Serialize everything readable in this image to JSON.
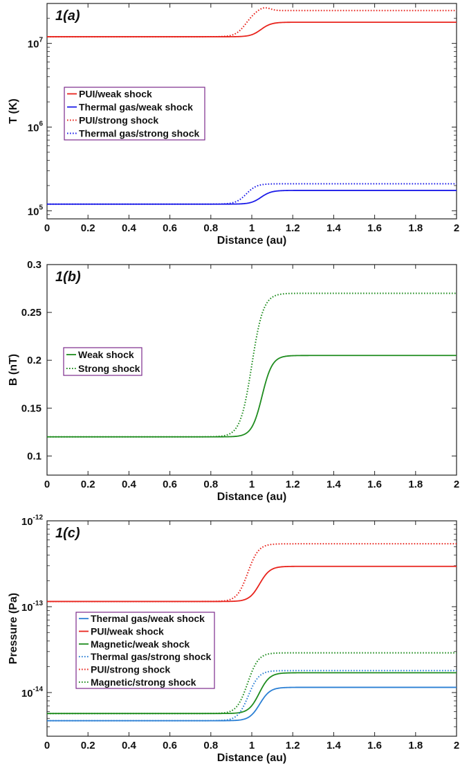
{
  "chart_data": [
    {
      "panel_label": "1(a)",
      "type": "line",
      "xlabel": "Distance (au)",
      "ylabel": "T (K)",
      "xlim": [
        0,
        2
      ],
      "ylim": [
        80000,
        30000000
      ],
      "yscale": "log",
      "x_ticks": [
        "0",
        "0.2",
        "0.4",
        "0.6",
        "0.8",
        "1",
        "1.2",
        "1.4",
        "1.6",
        "1.8",
        "2"
      ],
      "y_ticks": [
        {
          "value": 100000,
          "base": "10",
          "exp": "5"
        },
        {
          "value": 1000000,
          "base": "10",
          "exp": "6"
        },
        {
          "value": 10000000,
          "base": "10",
          "exp": "7"
        }
      ],
      "legend_position": "left-middle",
      "grid": false,
      "series": [
        {
          "name": "PUI/weak shock",
          "color": "#e8231c",
          "style": "solid",
          "upstream": 12000000,
          "downstream": 17900000,
          "center": 1.05,
          "width": 0.025,
          "x": [
            0,
            0.95,
            1.0,
            1.05,
            1.1,
            2
          ],
          "values": [
            12000000,
            12050000,
            13000000,
            15000000,
            17700000,
            17900000
          ]
        },
        {
          "name": "Thermal gas/weak shock",
          "color": "#1a1ae8",
          "style": "solid",
          "upstream": 120000,
          "downstream": 175000,
          "center": 1.05,
          "width": 0.025,
          "x": [
            0,
            0.95,
            1.0,
            1.05,
            1.1,
            2
          ],
          "values": [
            120000,
            121000,
            128000,
            145000,
            172000,
            175000
          ]
        },
        {
          "name": "PUI/strong shock",
          "color": "#e8231c",
          "style": "dotted",
          "upstream": 12000000,
          "downstream": 24700000,
          "center": 0.98,
          "width": 0.025,
          "overshoot": 1.6,
          "x": [
            0,
            0.9,
            0.95,
            1.0,
            1.05,
            1.1,
            2
          ],
          "values": [
            12000000,
            12100000,
            14000000,
            20000000,
            26000000,
            25000000,
            24700000
          ]
        },
        {
          "name": "Thermal gas/strong shock",
          "color": "#1a1ae8",
          "style": "dotted",
          "upstream": 120000,
          "downstream": 210000,
          "center": 0.98,
          "width": 0.025,
          "x": [
            0,
            0.9,
            0.95,
            1.0,
            1.05,
            2
          ],
          "values": [
            120000,
            121000,
            135000,
            170000,
            205000,
            210000
          ]
        }
      ]
    },
    {
      "panel_label": "1(b)",
      "type": "line",
      "xlabel": "Distance (au)",
      "ylabel": "B (nT)",
      "xlim": [
        0,
        2
      ],
      "ylim": [
        0.08,
        0.3
      ],
      "yscale": "linear",
      "x_ticks": [
        "0",
        "0.2",
        "0.4",
        "0.6",
        "0.8",
        "1",
        "1.2",
        "1.4",
        "1.6",
        "1.8",
        "2"
      ],
      "y_ticks": [
        {
          "value": 0.1,
          "label": "0.1"
        },
        {
          "value": 0.15,
          "label": "0.15"
        },
        {
          "value": 0.2,
          "label": "0.2"
        },
        {
          "value": 0.25,
          "label": "0.25"
        },
        {
          "value": 0.3,
          "label": "0.3"
        }
      ],
      "legend_position": "left-middle",
      "grid": false,
      "series": [
        {
          "name": "Weak shock",
          "color": "#1e8c1e",
          "style": "solid",
          "upstream": 0.12,
          "downstream": 0.205,
          "center": 1.05,
          "width": 0.025,
          "x": [
            0,
            0.95,
            1.0,
            1.05,
            1.1,
            1.2,
            2
          ],
          "values": [
            0.12,
            0.121,
            0.13,
            0.16,
            0.192,
            0.204,
            0.205
          ]
        },
        {
          "name": "Strong shock",
          "color": "#1e8c1e",
          "style": "dotted",
          "upstream": 0.12,
          "downstream": 0.27,
          "center": 1.0,
          "width": 0.028,
          "x": [
            0,
            0.9,
            0.95,
            1.0,
            1.05,
            1.1,
            2
          ],
          "values": [
            0.12,
            0.122,
            0.15,
            0.2,
            0.25,
            0.267,
            0.27
          ]
        }
      ]
    },
    {
      "panel_label": "1(c)",
      "type": "line",
      "xlabel": "Distance (au)",
      "ylabel": "Pressure (Pa)",
      "xlim": [
        0,
        2
      ],
      "ylim": [
        3.1e-15,
        1e-12
      ],
      "yscale": "log",
      "x_ticks": [
        "0",
        "0.2",
        "0.4",
        "0.6",
        "0.8",
        "1",
        "1.2",
        "1.4",
        "1.6",
        "1.8",
        "2"
      ],
      "y_ticks": [
        {
          "value": 1e-14,
          "base": "10",
          "exp": "-14"
        },
        {
          "value": 1e-13,
          "base": "10",
          "exp": "-13"
        },
        {
          "value": 1e-12,
          "base": "10",
          "exp": "-12"
        }
      ],
      "legend_position": "left-middle",
      "grid": false,
      "series": [
        {
          "name": "Thermal gas/weak shock",
          "color": "#2a7fd4",
          "style": "solid",
          "upstream": 4.7e-15,
          "downstream": 1.15e-14,
          "center": 1.05,
          "width": 0.025,
          "x": [
            0,
            0.95,
            1.05,
            1.15,
            2
          ],
          "values": [
            4.7e-15,
            4.8e-15,
            7.5e-15,
            1.14e-14,
            1.15e-14
          ]
        },
        {
          "name": "PUI/weak shock",
          "color": "#e8231c",
          "style": "solid",
          "upstream": 1.15e-13,
          "downstream": 2.95e-13,
          "center": 1.05,
          "width": 0.025,
          "x": [
            0,
            0.95,
            1.05,
            1.15,
            2
          ],
          "values": [
            1.15e-13,
            1.17e-13,
            1.8e-13,
            2.9e-13,
            2.95e-13
          ]
        },
        {
          "name": "Magnetic/weak shock",
          "color": "#1e8c1e",
          "style": "solid",
          "upstream": 5.7e-15,
          "downstream": 1.7e-14,
          "center": 1.05,
          "width": 0.025,
          "x": [
            0,
            0.95,
            1.05,
            1.15,
            2
          ],
          "values": [
            5.7e-15,
            5.8e-15,
            1e-14,
            1.68e-14,
            1.7e-14
          ]
        },
        {
          "name": "Thermal gas/strong shock",
          "color": "#2a7fd4",
          "style": "dotted",
          "upstream": 4.7e-15,
          "downstream": 1.8e-14,
          "center": 1.0,
          "width": 0.025,
          "x": [
            0,
            0.9,
            1.0,
            1.1,
            2
          ],
          "values": [
            4.7e-15,
            4.9e-15,
            1e-14,
            1.75e-14,
            1.8e-14
          ]
        },
        {
          "name": "PUI/strong shock",
          "color": "#e8231c",
          "style": "dotted",
          "upstream": 1.15e-13,
          "downstream": 5.4e-13,
          "center": 1.0,
          "width": 0.025,
          "x": [
            0,
            0.9,
            1.0,
            1.1,
            2
          ],
          "values": [
            1.15e-13,
            1.2e-13,
            2.6e-13,
            5.3e-13,
            5.4e-13
          ]
        },
        {
          "name": "Magnetic/strong shock",
          "color": "#1e8c1e",
          "style": "dotted",
          "upstream": 5.7e-15,
          "downstream": 2.9e-14,
          "center": 1.0,
          "width": 0.025,
          "x": [
            0,
            0.9,
            1.0,
            1.1,
            2
          ],
          "values": [
            5.7e-15,
            6e-15,
            1.4e-14,
            2.85e-14,
            2.9e-14
          ]
        }
      ]
    }
  ]
}
